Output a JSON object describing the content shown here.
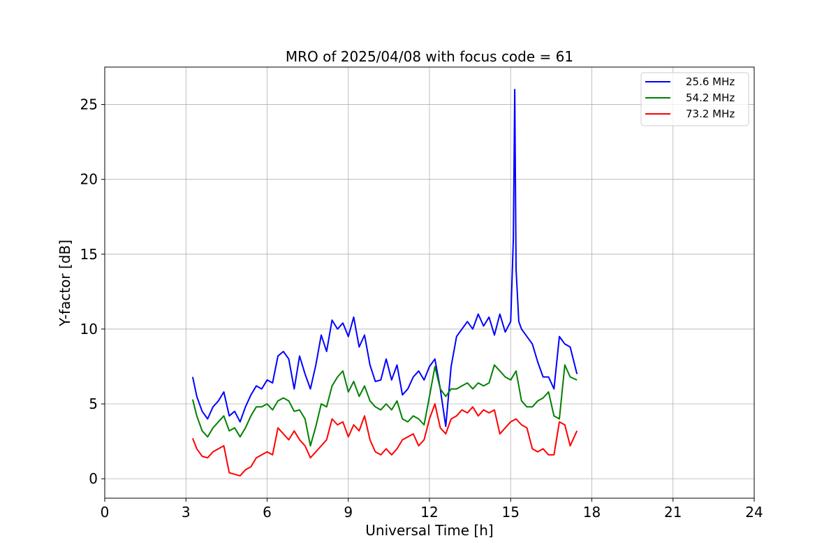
{
  "chart_data": {
    "type": "line",
    "title": "MRO of 2025/04/08 with focus code = 61",
    "xlabel": "Universal Time [h]",
    "ylabel": "Y-factor [dB]",
    "xlim": [
      0,
      24
    ],
    "ylim": [
      -1.3,
      27.5
    ],
    "xticks": [
      0,
      3,
      6,
      9,
      12,
      15,
      18,
      21,
      24
    ],
    "yticks": [
      0,
      5,
      10,
      15,
      20,
      25
    ],
    "grid": true,
    "legend_position": "top-right",
    "series": [
      {
        "name": "25.6 MHz",
        "color": "#0000ff",
        "x": [
          3.25,
          3.4,
          3.6,
          3.8,
          4.0,
          4.2,
          4.4,
          4.6,
          4.8,
          5.0,
          5.2,
          5.4,
          5.6,
          5.8,
          6.0,
          6.2,
          6.4,
          6.6,
          6.8,
          7.0,
          7.2,
          7.4,
          7.6,
          7.8,
          8.0,
          8.2,
          8.4,
          8.6,
          8.8,
          9.0,
          9.2,
          9.4,
          9.6,
          9.8,
          10.0,
          10.2,
          10.4,
          10.6,
          10.8,
          11.0,
          11.2,
          11.4,
          11.6,
          11.8,
          12.0,
          12.2,
          12.4,
          12.6,
          12.8,
          13.0,
          13.2,
          13.4,
          13.6,
          13.8,
          14.0,
          14.2,
          14.4,
          14.6,
          14.8,
          15.0,
          15.1,
          15.15,
          15.2,
          15.3,
          15.4,
          15.6,
          15.8,
          16.0,
          16.2,
          16.4,
          16.6,
          16.8,
          17.0,
          17.2,
          17.45
        ],
        "y": [
          6.8,
          5.5,
          4.5,
          4.0,
          4.8,
          5.2,
          5.8,
          4.2,
          4.5,
          3.8,
          4.8,
          5.6,
          6.2,
          6.0,
          6.6,
          6.4,
          8.2,
          8.5,
          8.0,
          6.0,
          8.2,
          7.0,
          6.0,
          7.6,
          9.6,
          8.5,
          10.6,
          10.0,
          10.4,
          9.5,
          10.8,
          8.8,
          9.6,
          7.6,
          6.5,
          6.6,
          8.0,
          6.6,
          7.6,
          5.6,
          6.0,
          6.8,
          7.2,
          6.6,
          7.5,
          8.0,
          6.0,
          3.5,
          7.5,
          9.5,
          10.0,
          10.5,
          10.0,
          11.0,
          10.2,
          10.8,
          9.6,
          11.0,
          9.8,
          10.5,
          16.0,
          26.0,
          14.0,
          10.5,
          10.0,
          9.5,
          9.0,
          7.8,
          6.8,
          6.8,
          6.0,
          9.5,
          9.0,
          8.8,
          7.0
        ]
      },
      {
        "name": "54.2 MHz",
        "color": "#008000",
        "x": [
          3.25,
          3.4,
          3.6,
          3.8,
          4.0,
          4.2,
          4.4,
          4.6,
          4.8,
          5.0,
          5.2,
          5.4,
          5.6,
          5.8,
          6.0,
          6.2,
          6.4,
          6.6,
          6.8,
          7.0,
          7.2,
          7.4,
          7.6,
          7.8,
          8.0,
          8.2,
          8.4,
          8.6,
          8.8,
          9.0,
          9.2,
          9.4,
          9.6,
          9.8,
          10.0,
          10.2,
          10.4,
          10.6,
          10.8,
          11.0,
          11.2,
          11.4,
          11.6,
          11.8,
          12.0,
          12.2,
          12.4,
          12.6,
          12.8,
          13.0,
          13.2,
          13.4,
          13.6,
          13.8,
          14.0,
          14.2,
          14.4,
          14.6,
          14.8,
          15.0,
          15.2,
          15.4,
          15.6,
          15.8,
          16.0,
          16.2,
          16.4,
          16.6,
          16.8,
          17.0,
          17.2,
          17.45
        ],
        "y": [
          5.3,
          4.2,
          3.2,
          2.8,
          3.4,
          3.8,
          4.2,
          3.2,
          3.4,
          2.8,
          3.4,
          4.2,
          4.8,
          4.8,
          5.0,
          4.6,
          5.2,
          5.4,
          5.2,
          4.5,
          4.6,
          4.0,
          2.2,
          3.5,
          5.0,
          4.8,
          6.2,
          6.8,
          7.2,
          5.8,
          6.5,
          5.5,
          6.2,
          5.2,
          4.8,
          4.6,
          5.0,
          4.6,
          5.2,
          4.0,
          3.8,
          4.2,
          4.0,
          3.6,
          5.5,
          7.5,
          6.0,
          5.5,
          6.0,
          6.0,
          6.2,
          6.4,
          6.0,
          6.4,
          6.2,
          6.4,
          7.6,
          7.2,
          6.8,
          6.6,
          7.2,
          5.2,
          4.8,
          4.8,
          5.2,
          5.4,
          5.8,
          4.2,
          4.0,
          7.6,
          6.8,
          6.6
        ]
      },
      {
        "name": "73.2 MHz",
        "color": "#ff0000",
        "x": [
          3.25,
          3.4,
          3.6,
          3.8,
          4.0,
          4.2,
          4.4,
          4.6,
          4.8,
          5.0,
          5.2,
          5.4,
          5.6,
          5.8,
          6.0,
          6.2,
          6.4,
          6.6,
          6.8,
          7.0,
          7.2,
          7.4,
          7.6,
          7.8,
          8.0,
          8.2,
          8.4,
          8.6,
          8.8,
          9.0,
          9.2,
          9.4,
          9.6,
          9.8,
          10.0,
          10.2,
          10.4,
          10.6,
          10.8,
          11.0,
          11.2,
          11.4,
          11.6,
          11.8,
          12.0,
          12.2,
          12.4,
          12.6,
          12.8,
          13.0,
          13.2,
          13.4,
          13.6,
          13.8,
          14.0,
          14.2,
          14.4,
          14.6,
          14.8,
          15.0,
          15.2,
          15.4,
          15.6,
          15.8,
          16.0,
          16.2,
          16.4,
          16.6,
          16.8,
          17.0,
          17.2,
          17.45
        ],
        "y": [
          2.7,
          2.0,
          1.5,
          1.4,
          1.8,
          2.0,
          2.2,
          0.4,
          0.3,
          0.2,
          0.6,
          0.8,
          1.4,
          1.6,
          1.8,
          1.6,
          3.4,
          3.0,
          2.6,
          3.2,
          2.6,
          2.2,
          1.4,
          1.8,
          2.2,
          2.6,
          4.0,
          3.6,
          3.8,
          2.8,
          3.6,
          3.2,
          4.2,
          2.6,
          1.8,
          1.6,
          2.0,
          1.6,
          2.0,
          2.6,
          2.8,
          3.0,
          2.2,
          2.6,
          4.0,
          5.0,
          3.4,
          3.0,
          4.0,
          4.2,
          4.6,
          4.4,
          4.8,
          4.2,
          4.6,
          4.4,
          4.6,
          3.0,
          3.4,
          3.8,
          4.0,
          3.6,
          3.4,
          2.0,
          1.8,
          2.0,
          1.6,
          1.6,
          3.8,
          3.6,
          2.2,
          3.2
        ]
      }
    ]
  }
}
